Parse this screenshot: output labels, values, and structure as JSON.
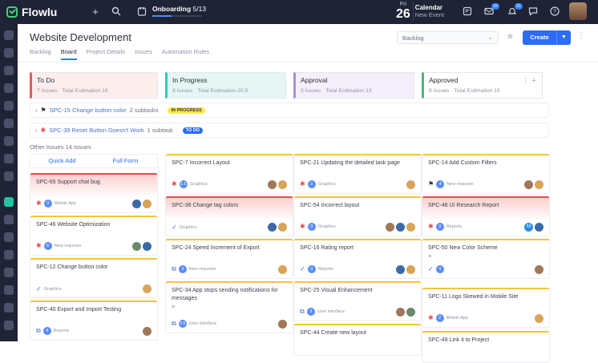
{
  "topbar": {
    "app_name": "Flowlu",
    "onboarding_label": "Onboarding",
    "onboarding_progress": "5/13",
    "onboarding_fraction": 0.38,
    "calendar_weekday": "Fri",
    "calendar_day": "26",
    "calendar_title": "Calendar",
    "calendar_sub": "New Event",
    "mail_badge": "10",
    "notif_badge": "21"
  },
  "page": {
    "title": "Website Development",
    "tabs": [
      "Backlog",
      "Board",
      "Project Details",
      "Issues",
      "Automation Rules"
    ],
    "select_value": "Backlog",
    "create_label": "Create"
  },
  "columns": [
    {
      "name": "To Do",
      "issues": "7 Issues",
      "estimation": "Total Estimation 16"
    },
    {
      "name": "In Progress",
      "issues": "8 Issues",
      "estimation": "Total Estimation 20.5"
    },
    {
      "name": "Approval",
      "issues": "5 Issues",
      "estimation": "Total Estimation 13"
    },
    {
      "name": "Approved",
      "issues": "6 Issues",
      "estimation": "Total Estimation 15"
    }
  ],
  "swimlanes": [
    {
      "link": "SPC-15 Change button color",
      "sub": "2 subtasks",
      "status": "IN PROGRESS"
    },
    {
      "link": "SPC-39 Reset Button Doesn't Work",
      "sub": "1 subtask",
      "status": "TO DO"
    }
  ],
  "other_issues": "Other Issues 14 Issues",
  "quick_add": "Quick Add",
  "full_form": "Full Form",
  "cards": {
    "col1": [
      {
        "title": "SPC-65 Support chat bug",
        "count": "3",
        "tag": "Mobile App"
      },
      {
        "title": "SPC-46 Website Optimization",
        "count": "6",
        "tag": "New requests"
      },
      {
        "title": "SPC-12 Change button color",
        "count": "",
        "tag": "Graphics"
      },
      {
        "title": "SPC-40 Export and Import Testing",
        "count": "4",
        "tag": "Reports"
      }
    ],
    "col2": [
      {
        "title": "SPC-7 Incorrect Layout",
        "count": "1.5",
        "tag": "Graphics"
      },
      {
        "title": "SPC-36 Change tag colors",
        "count": "",
        "tag": "Graphics"
      },
      {
        "title": "SPC-24 Speed Increment of Export",
        "count": "3",
        "tag": "New requests"
      },
      {
        "title": "SPC-34 App stops sending notifications for messages",
        "count": "3.5",
        "tag": "User interface"
      }
    ],
    "col3": [
      {
        "title": "SPC-21 Updating the detailed task page",
        "count": "3",
        "tag": "Graphics"
      },
      {
        "title": "SPC-54 Incorrect layout",
        "count": "3",
        "tag": "Graphics"
      },
      {
        "title": "SPC-16 Rating report",
        "count": "3",
        "tag": "Reports"
      },
      {
        "title": "SPC-25 Visual Enhancement",
        "count": "3",
        "tag": "User interface"
      },
      {
        "title": "SPC-44 Create new layout",
        "count": "",
        "tag": ""
      }
    ],
    "col4": [
      {
        "title": "SPC-14 Add Custom Filters",
        "count": "4",
        "tag": "New requests"
      },
      {
        "title": "SPC-48 UI Research Report",
        "count": "3",
        "tag": "Reports"
      },
      {
        "title": "SPC-50 New Color Scheme",
        "count": "4",
        "tag": ""
      },
      {
        "title": "SPC-11 Logo Skewed in Mobile Site",
        "count": "2",
        "tag": "Mobile App"
      },
      {
        "title": "SPC-49 Link it to Project",
        "count": "",
        "tag": ""
      }
    ]
  },
  "avatar_initial": "M"
}
